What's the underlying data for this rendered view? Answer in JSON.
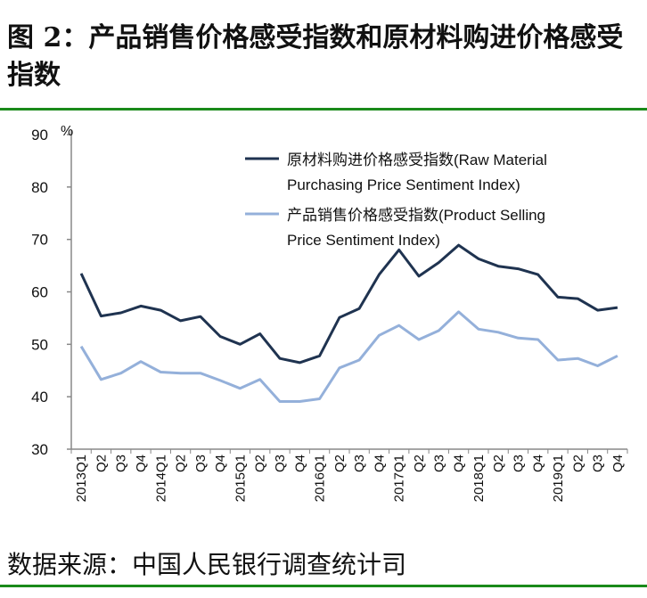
{
  "title": "图 2：产品销售价格感受指数和原材料购进价格感受指数",
  "source": "数据来源：中国人民银行调查统计司",
  "chart_data": {
    "type": "line",
    "title": "",
    "ylabel": "%",
    "xlabel": "",
    "ylim": [
      30,
      90
    ],
    "yticks": [
      30,
      40,
      50,
      60,
      70,
      80,
      90
    ],
    "grid": false,
    "legend_position": "top-right",
    "categories": [
      "2013Q1",
      "Q2",
      "Q3",
      "Q4",
      "2014Q1",
      "Q2",
      "Q3",
      "Q4",
      "2015Q1",
      "Q2",
      "Q3",
      "Q4",
      "2016Q1",
      "Q2",
      "Q3",
      "Q4",
      "2017Q1",
      "Q2",
      "Q3",
      "Q4",
      "2018Q1",
      "Q2",
      "Q3",
      "Q4",
      "2019Q1",
      "Q2",
      "Q3",
      "Q4"
    ],
    "series": [
      {
        "name": "原材料购进价格感受指数(Raw  Material Purchasing Price Sentiment Index)",
        "legend_lines": [
          "原材料购进价格感受指数(Raw  Material",
          "Purchasing Price Sentiment Index)"
        ],
        "color": "#1f3350",
        "values": [
          63.5,
          55.4,
          56.0,
          57.3,
          56.5,
          54.5,
          55.3,
          51.5,
          50.0,
          52.0,
          47.3,
          46.5,
          47.8,
          55.1,
          56.8,
          63.3,
          68.0,
          63.0,
          65.6,
          68.9,
          66.3,
          64.9,
          64.4,
          63.3,
          59.0,
          58.7,
          56.5,
          57.0
        ]
      },
      {
        "name": "产品销售价格感受指数(Product  Selling Price Sentiment Index)",
        "legend_lines": [
          "产品销售价格感受指数(Product  Selling",
          "Price Sentiment Index)"
        ],
        "color": "#94b0da",
        "values": [
          49.6,
          43.3,
          44.5,
          46.7,
          44.7,
          44.5,
          44.5,
          43.1,
          41.6,
          43.3,
          39.1,
          39.1,
          39.6,
          45.5,
          47.0,
          51.7,
          53.6,
          50.9,
          52.6,
          56.2,
          52.9,
          52.3,
          51.2,
          50.9,
          47.0,
          47.3,
          45.9,
          47.8
        ]
      }
    ]
  }
}
